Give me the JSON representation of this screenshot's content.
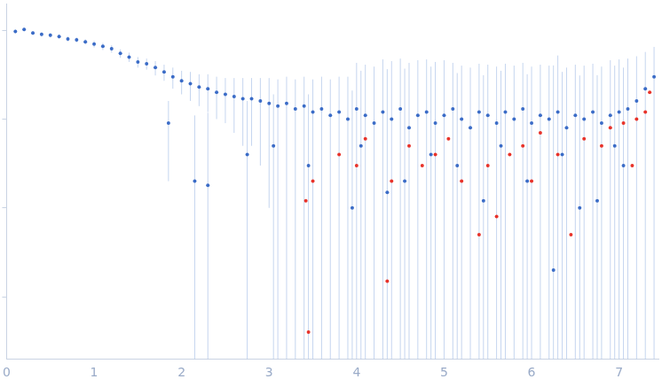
{
  "chart_data": {
    "type": "scatter",
    "xlim": [
      0,
      7.45
    ],
    "xticks": [
      0,
      1,
      2,
      3,
      4,
      5,
      6,
      7
    ],
    "ylim": [
      0.0002,
      2
    ],
    "yticks": [
      0.001,
      0.01,
      0.1,
      1
    ],
    "log": "y",
    "grid": false,
    "tick_labels": "x",
    "series": [
      {
        "color": "#3b6cc7",
        "marker": "circle",
        "x": [
          0.1,
          0.2,
          0.3,
          0.4,
          0.5,
          0.6,
          0.7,
          0.8,
          0.9,
          1.0,
          1.1,
          1.2,
          1.3,
          1.4,
          1.5,
          1.6,
          1.7,
          1.8,
          1.9,
          2.0,
          2.1,
          2.2,
          2.3,
          2.4,
          2.5,
          2.6,
          2.7,
          2.8,
          2.9,
          3.0,
          3.1,
          3.2,
          3.3,
          3.4,
          3.5,
          3.6,
          3.7,
          3.8,
          3.9,
          4.0,
          4.1,
          4.2,
          4.3,
          4.4,
          4.5,
          4.6,
          4.7,
          4.8,
          4.9,
          5.0,
          5.1,
          5.2,
          5.3,
          5.4,
          5.5,
          5.6,
          5.7,
          5.8,
          5.9,
          6.0,
          6.1,
          6.2,
          6.3,
          6.4,
          6.5,
          6.6,
          6.7,
          6.8,
          6.9,
          7.0,
          7.1,
          7.2,
          7.3,
          7.4,
          1.85,
          2.15,
          2.3,
          2.75,
          3.05,
          3.45,
          3.95,
          4.05,
          4.35,
          4.55,
          4.85,
          5.15,
          5.45,
          5.65,
          5.95,
          6.25,
          6.35,
          6.55,
          6.75,
          6.95,
          7.05
        ],
        "values": [
          0.97,
          1.02,
          0.93,
          0.9,
          0.88,
          0.85,
          0.8,
          0.78,
          0.74,
          0.7,
          0.66,
          0.62,
          0.55,
          0.5,
          0.44,
          0.42,
          0.38,
          0.34,
          0.3,
          0.27,
          0.25,
          0.23,
          0.22,
          0.2,
          0.19,
          0.18,
          0.17,
          0.17,
          0.16,
          0.15,
          0.14,
          0.15,
          0.13,
          0.14,
          0.12,
          0.13,
          0.11,
          0.12,
          0.1,
          0.13,
          0.11,
          0.09,
          0.12,
          0.1,
          0.13,
          0.08,
          0.11,
          0.12,
          0.09,
          0.11,
          0.13,
          0.1,
          0.08,
          0.12,
          0.11,
          0.09,
          0.12,
          0.1,
          0.13,
          0.09,
          0.11,
          0.1,
          0.12,
          0.08,
          0.11,
          0.1,
          0.12,
          0.09,
          0.11,
          0.12,
          0.13,
          0.16,
          0.22,
          0.3,
          0.09,
          0.02,
          0.018,
          0.04,
          0.05,
          0.03,
          0.01,
          0.05,
          0.015,
          0.02,
          0.04,
          0.03,
          0.012,
          0.05,
          0.02,
          0.002,
          0.04,
          0.01,
          0.012,
          0.05,
          0.03
        ],
        "errors": [
          0.05,
          0.05,
          0.05,
          0.05,
          0.05,
          0.05,
          0.05,
          0.05,
          0.05,
          0.06,
          0.06,
          0.06,
          0.06,
          0.06,
          0.06,
          0.06,
          0.07,
          0.07,
          0.08,
          0.08,
          0.09,
          0.09,
          0.1,
          0.1,
          0.1,
          0.11,
          0.12,
          0.12,
          0.13,
          0.14,
          0.14,
          0.15,
          0.15,
          0.16,
          0.16,
          0.17,
          0.17,
          0.18,
          0.2,
          0.3,
          0.3,
          0.3,
          0.35,
          0.35,
          0.35,
          0.35,
          0.35,
          0.35,
          0.35,
          0.35,
          0.3,
          0.3,
          0.3,
          0.3,
          0.3,
          0.3,
          0.3,
          0.3,
          0.3,
          0.3,
          0.3,
          0.3,
          0.4,
          0.3,
          0.3,
          0.3,
          0.3,
          0.3,
          0.35,
          0.35,
          0.35,
          0.35,
          0.35,
          0.35,
          0.07,
          0.09,
          0.1,
          0.12,
          0.14,
          0.16,
          0.2,
          0.3,
          0.35,
          0.35,
          0.35,
          0.3,
          0.3,
          0.3,
          0.3,
          0.4,
          0.3,
          0.3,
          0.3,
          0.35,
          0.35
        ]
      },
      {
        "color": "#e8332a",
        "marker": "circle",
        "x": [
          3.42,
          3.45,
          3.5,
          3.8,
          4.0,
          4.1,
          4.35,
          4.4,
          4.6,
          4.75,
          4.9,
          5.05,
          5.2,
          5.4,
          5.5,
          5.6,
          5.75,
          5.9,
          6.0,
          6.1,
          6.3,
          6.45,
          6.6,
          6.8,
          6.9,
          7.05,
          7.15,
          7.2,
          7.3,
          7.35
        ],
        "values": [
          0.012,
          0.0004,
          0.02,
          0.04,
          0.03,
          0.06,
          0.0015,
          0.02,
          0.05,
          0.03,
          0.04,
          0.06,
          0.02,
          0.005,
          0.03,
          0.008,
          0.04,
          0.05,
          0.02,
          0.07,
          0.04,
          0.005,
          0.06,
          0.05,
          0.08,
          0.09,
          0.03,
          0.1,
          0.12,
          0.2
        ]
      }
    ]
  }
}
